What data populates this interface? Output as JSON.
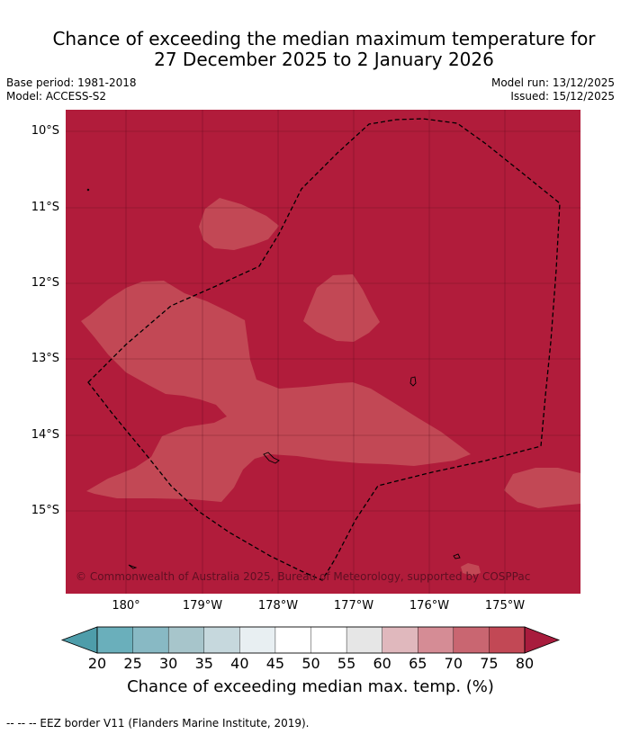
{
  "title_line1": "Chance of exceeding the median maximum temperature for",
  "title_line2": "27 December 2025 to 2 January 2026",
  "base_period": "Base period: 1981-2018",
  "model": "Model: ACCESS-S2",
  "model_run": "Model run: 13/12/2025",
  "issued": "Issued: 15/12/2025",
  "map": {
    "lat_labels": [
      "10°S",
      "11°S",
      "12°S",
      "13°S",
      "14°S",
      "15°S"
    ],
    "lon_labels": [
      "180°",
      "179°W",
      "178°W",
      "177°W",
      "176°W",
      "175°W"
    ],
    "copyright": "© Commonwealth of Australia 2025, Bureau of Meteorology, supported by COSPPac",
    "colors": {
      "above_80": "#b11c3b",
      "band_75_80": "#c24855",
      "coastline": "#000000"
    }
  },
  "colorbar": {
    "ticks": [
      "20",
      "25",
      "30",
      "35",
      "40",
      "45",
      "50",
      "55",
      "60",
      "65",
      "70",
      "75",
      "80"
    ],
    "colors": [
      "#4e9daa",
      "#6aafbb",
      "#88b9c4",
      "#a7c5cb",
      "#c6d8dd",
      "#e8eff2",
      "#ffffff",
      "#ffffff",
      "#e6e6e6",
      "#e0b8bd",
      "#d58c95",
      "#c96671",
      "#c24855",
      "#a81c3d"
    ],
    "label": "Chance of exceeding median max. temp. (%)"
  },
  "footnote": "-- -- -- EEZ border V11 (Flanders Marine Institute, 2019)."
}
